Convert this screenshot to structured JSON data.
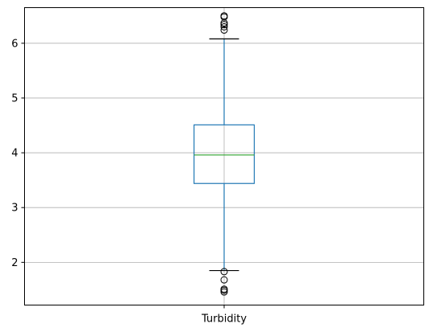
{
  "chart_data": {
    "type": "box",
    "title": "",
    "xlabel": "",
    "ylabel": "",
    "categories": [
      "Turbidity"
    ],
    "series": [
      {
        "category": "Turbidity",
        "whisker_low": 1.85,
        "q1": 3.44,
        "median": 3.96,
        "q3": 4.51,
        "whisker_high": 6.08,
        "outliers": [
          1.46,
          1.49,
          1.51,
          1.68,
          1.83,
          6.24,
          6.3,
          6.34,
          6.37,
          6.48,
          6.5
        ]
      }
    ],
    "ylim": [
      1.22,
      6.65
    ],
    "yticks": [
      2,
      3,
      4,
      5,
      6
    ],
    "grid": true,
    "colors": {
      "box": "#1f77b4",
      "median": "#2ca02c",
      "whisker": "#1f77b4",
      "cap": "#000000",
      "outlier": "#000000",
      "grid": "#b0b0b0",
      "axes": "#000000"
    }
  }
}
